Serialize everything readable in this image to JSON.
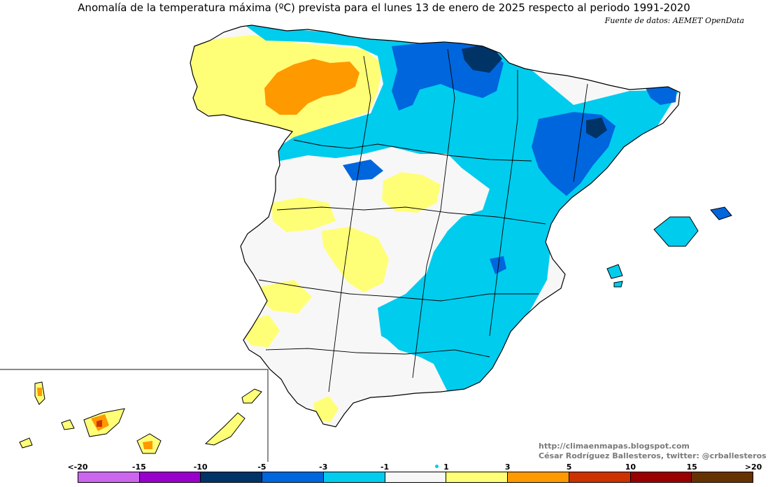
{
  "header": {
    "title": "Anomalía de la temperatura máxima (ºC) prevista para el lunes 13 de enero de 2025 respecto al periodo 1991-2020",
    "source": "Fuente de datos: AEMET OpenData"
  },
  "credits": {
    "blog": "http://climaenmapas.blogspot.com",
    "author": "César Rodríguez Ballesteros, twitter: @crballesteros"
  },
  "legend": {
    "ticks": [
      "<-20",
      "-15",
      "-10",
      "-5",
      "-3",
      "-1",
      "1",
      "3",
      "5",
      "10",
      "15",
      ">20"
    ],
    "colors": [
      "#cc66ee",
      "#9900cc",
      "#003366",
      "#0066dd",
      "#00ccee",
      "#f7f7f7",
      "#ffff77",
      "#ff9900",
      "#cc3300",
      "#990000",
      "#663300"
    ]
  },
  "map": {
    "colors": {
      "land": "#f7f7f7",
      "slight_warm": "#ffff77",
      "warm": "#ff9900",
      "hot": "#cc3300",
      "slight_cold": "#00ccee",
      "cold": "#0066dd",
      "very_cold": "#003366",
      "border": "#000000"
    }
  }
}
